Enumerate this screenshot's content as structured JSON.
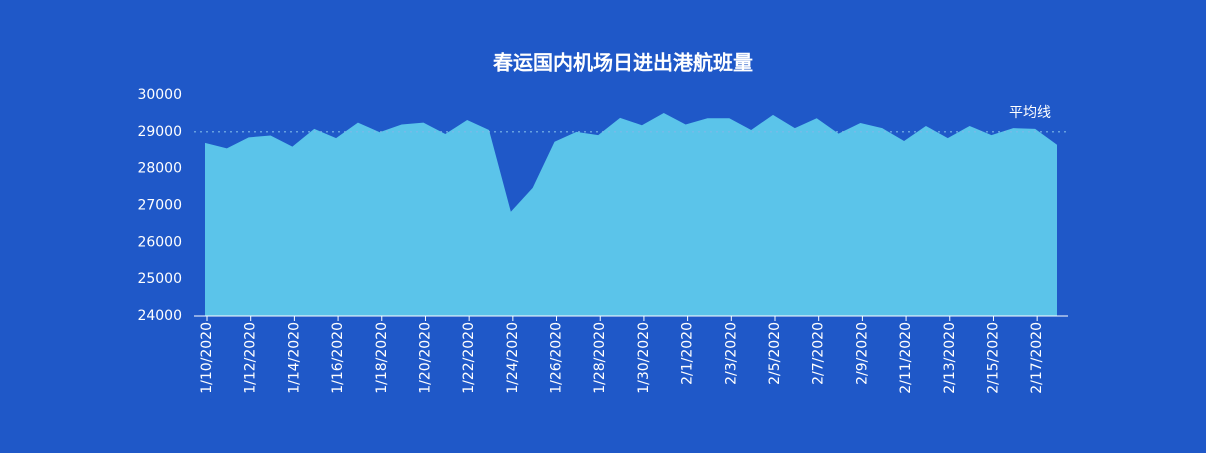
{
  "chart_data": {
    "type": "area",
    "title": "春运国内机场日进出港航班量",
    "categories": [
      "1/10/2020",
      null,
      "1/12/2020",
      null,
      "1/14/2020",
      null,
      "1/16/2020",
      null,
      "1/18/2020",
      null,
      "1/20/2020",
      null,
      "1/22/2020",
      null,
      "1/24/2020",
      null,
      "1/26/2020",
      null,
      "1/28/2020",
      null,
      "1/30/2020",
      null,
      "2/1/2020",
      null,
      "2/3/2020",
      null,
      "2/5/2020",
      null,
      "2/7/2020",
      null,
      "2/9/2020",
      null,
      "2/11/2020",
      null,
      "2/13/2020",
      null,
      "2/15/2020",
      null,
      "2/17/2020",
      null
    ],
    "values": [
      28700,
      28550,
      28850,
      28900,
      28600,
      29080,
      28830,
      29250,
      28990,
      29200,
      29250,
      28940,
      29320,
      29050,
      26830,
      27480,
      28730,
      29000,
      28910,
      29380,
      29180,
      29510,
      29200,
      29370,
      29370,
      29050,
      29460,
      29100,
      29370,
      28950,
      29240,
      29100,
      28750,
      29160,
      28830,
      29160,
      28910,
      29100,
      29080,
      28650
    ],
    "color": "#5bc4ea",
    "ylim": [
      24000,
      30000
    ],
    "yticks": [
      24000,
      25000,
      26000,
      27000,
      28000,
      29000,
      30000
    ],
    "average": 29000,
    "average_label": "平均线"
  }
}
